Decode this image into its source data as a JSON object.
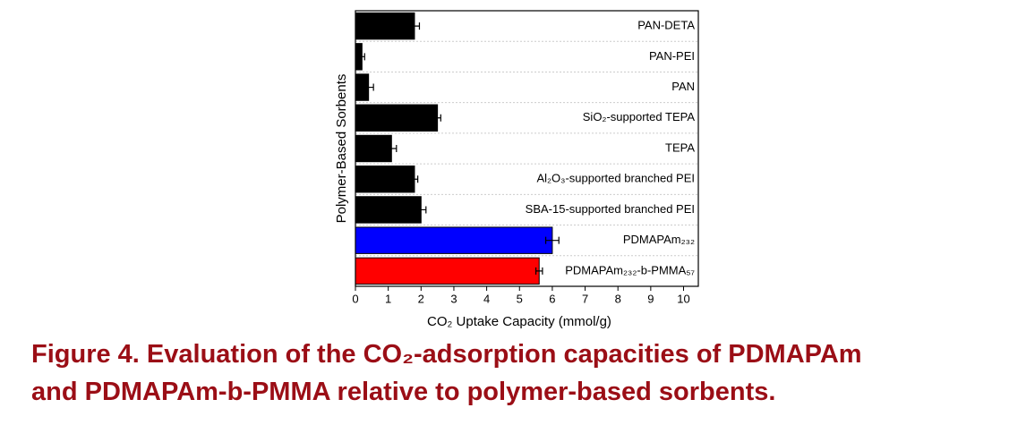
{
  "chart_data": {
    "type": "barh",
    "x_label": "CO₂ Uptake Capacity (mmol/g)",
    "y_label": "Polymer-Based Sorbents",
    "categories": [
      "PAN-DETA",
      "PAN-PEI",
      "PAN",
      "SiO₂-supported TEPA",
      "TEPA",
      "Al₂O₃-supported branched PEI",
      "SBA-15-supported branched PEI",
      "PDMAPAm₂₃₂",
      "PDMAPAm₂₃₂-b-PMMA₅₇"
    ],
    "values": [
      1.8,
      0.2,
      0.4,
      2.5,
      1.1,
      1.8,
      2.0,
      6.0,
      5.6
    ],
    "errors": [
      0.15,
      0.08,
      0.15,
      0.1,
      0.15,
      0.1,
      0.15,
      0.2,
      0.1
    ],
    "colors": [
      "#000000",
      "#000000",
      "#000000",
      "#000000",
      "#000000",
      "#000000",
      "#000000",
      "#0000ff",
      "#ff0000"
    ],
    "xlim": [
      0,
      10.45
    ],
    "xticks": [
      0,
      1,
      2,
      3,
      4,
      5,
      6,
      7,
      8,
      9,
      10
    ],
    "caption": [
      "Figure 4. Evaluation of the CO₂-adsorption capacities of PDMAPAm",
      "and PDMAPAm-b-PMMA relative to polymer-based sorbents."
    ]
  }
}
